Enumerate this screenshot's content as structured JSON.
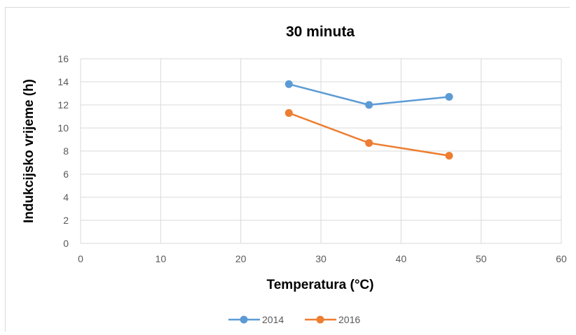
{
  "chart_data": {
    "type": "line",
    "title": "30 minuta",
    "xlabel": "Temperatura (°C)",
    "ylabel": "Indukcijsko vrijeme (h)",
    "xlim": [
      0,
      60
    ],
    "ylim": [
      0,
      16
    ],
    "xticks": [
      0,
      10,
      20,
      30,
      40,
      50,
      60
    ],
    "yticks": [
      0,
      2,
      4,
      6,
      8,
      10,
      12,
      14,
      16
    ],
    "grid": true,
    "legend_position": "bottom",
    "series": [
      {
        "name": "2014",
        "color": "#5b9bd5",
        "x": [
          26,
          36,
          46
        ],
        "y": [
          13.8,
          12.0,
          12.7
        ]
      },
      {
        "name": "2016",
        "color": "#ed7d31",
        "x": [
          26,
          36,
          46
        ],
        "y": [
          11.3,
          8.7,
          7.6
        ]
      }
    ]
  }
}
